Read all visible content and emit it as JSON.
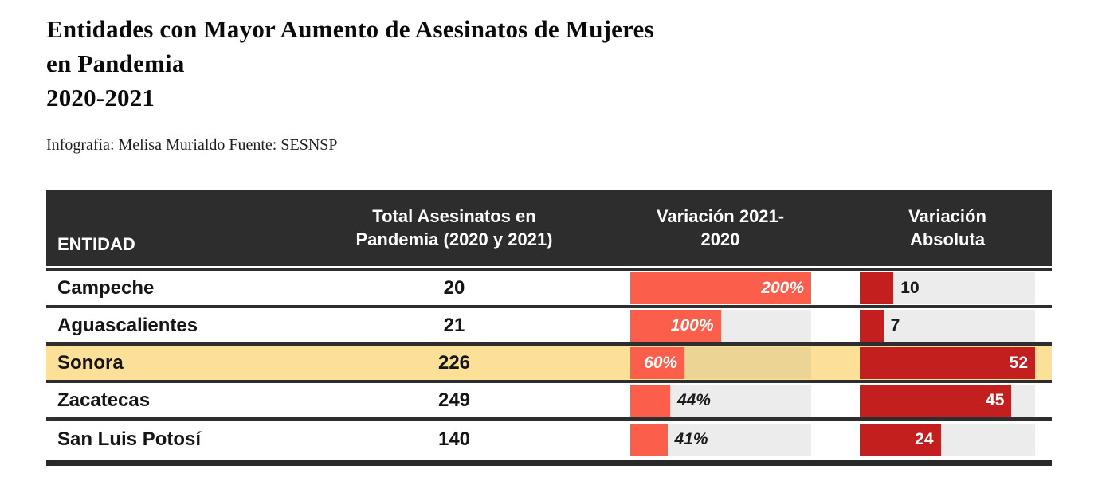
{
  "title": {
    "line1": "Entidades con Mayor Aumento de Asesinatos de Mujeres",
    "line2": "en Pandemia",
    "line3": "2020-2021"
  },
  "subtitle": "Infografía: Melisa Murialdo Fuente: SESNSP",
  "colors": {
    "header_bg": "#2d2d2d",
    "header_text": "#ffffff",
    "row_border": "#2e2e2e",
    "highlight_row_bg": "#fce098",
    "variation_bar": "#fb5f4c",
    "absolute_bar": "#c41f1f",
    "track_gray": "#ececec",
    "track_on_highlight": "#ecd494"
  },
  "table": {
    "columns": [
      {
        "label": "ENTIDAD"
      },
      {
        "label": "Total Asesinatos en Pandemia (2020 y 2021)"
      },
      {
        "label": "Variación 2021-2020"
      },
      {
        "label": "Variación Absoluta"
      }
    ],
    "variation_scale_max": 200,
    "absolute_scale_max": 52,
    "rows": [
      {
        "entity": "Campeche",
        "total": "20",
        "variation_pct": 200,
        "variation_label": "200%",
        "variation_label_inside": true,
        "absolute": 10,
        "absolute_label": "10",
        "absolute_label_inside": false,
        "highlighted": false
      },
      {
        "entity": "Aguascalientes",
        "total": "21",
        "variation_pct": 100,
        "variation_label": "100%",
        "variation_label_inside": true,
        "absolute": 7,
        "absolute_label": "7",
        "absolute_label_inside": false,
        "highlighted": false
      },
      {
        "entity": "Sonora",
        "total": "226",
        "variation_pct": 60,
        "variation_label": "60%",
        "variation_label_inside": true,
        "absolute": 52,
        "absolute_label": "52",
        "absolute_label_inside": true,
        "highlighted": true
      },
      {
        "entity": "Zacatecas",
        "total": "249",
        "variation_pct": 44,
        "variation_label": "44%",
        "variation_label_inside": false,
        "absolute": 45,
        "absolute_label": "45",
        "absolute_label_inside": true,
        "highlighted": false
      },
      {
        "entity": "San Luis Potosí",
        "total": "140",
        "variation_pct": 41,
        "variation_label": "41%",
        "variation_label_inside": false,
        "absolute": 24,
        "absolute_label": "24",
        "absolute_label_inside": true,
        "highlighted": false
      }
    ]
  },
  "chart_data": {
    "type": "table",
    "title": "Entidades con Mayor Aumento de Asesinatos de Mujeres en Pandemia 2020-2021",
    "source": "Infografía: Melisa Murialdo Fuente: SESNSP",
    "columns": [
      "ENTIDAD",
      "Total Asesinatos en Pandemia (2020 y 2021)",
      "Variación 2021-2020",
      "Variación Absoluta"
    ],
    "rows": [
      [
        "Campeche",
        20,
        "200%",
        10
      ],
      [
        "Aguascalientes",
        21,
        "100%",
        7
      ],
      [
        "Sonora",
        226,
        "60%",
        52
      ],
      [
        "Zacatecas",
        249,
        "44%",
        45
      ],
      [
        "San Luis Potosí",
        140,
        "41%",
        24
      ]
    ],
    "highlighted_row": "Sonora",
    "embedded_bars": {
      "variation_pct_values": [
        200,
        100,
        60,
        44,
        41
      ],
      "variation_axis_max_pct": 200,
      "absolute_values": [
        10,
        7,
        52,
        45,
        24
      ],
      "absolute_axis_max": 52
    }
  }
}
